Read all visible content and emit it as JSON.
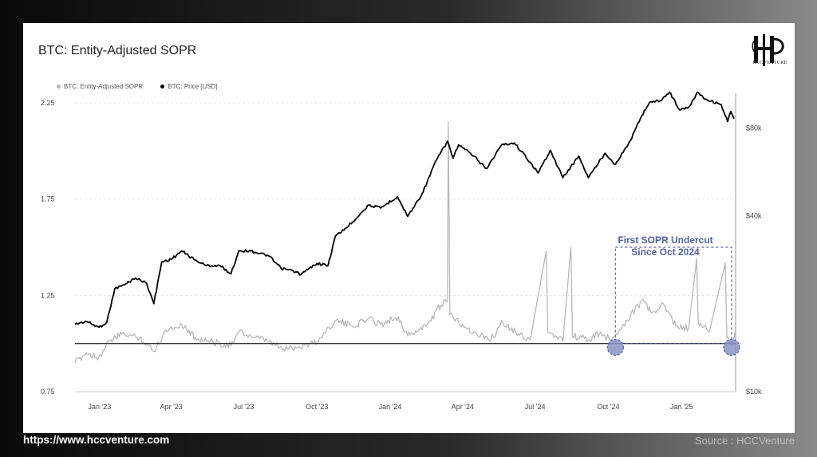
{
  "footer": {
    "url": "https://www.hccventure.com",
    "source": "Source : HCCVenture"
  },
  "logo": {
    "text": "HCCVENTURE"
  },
  "colors": {
    "sopr": "#b8b8b8",
    "price": "#000000",
    "annotation": "#5560a8",
    "marker_fill": "#8a94c6",
    "baseline": "#333333"
  },
  "chart_data": {
    "type": "line",
    "title": "BTC: Entity-Adjusted SOPR",
    "legend": [
      "BTC: Entity-Adjusted SOPR",
      "BTC: Price [USD]"
    ],
    "legend_placement": "top-left",
    "grid": "horizontal dashed",
    "x_tick_labels": [
      "Jan '23",
      "Apr '23",
      "Jul '23",
      "Oct '23",
      "Jan '24",
      "Apr '24",
      "Jul '24",
      "Oct '24",
      "Jan '25"
    ],
    "x_range": [
      "2022-12-01",
      "2025-03-10"
    ],
    "left_axis": {
      "ticks": [
        0.75,
        1.25,
        1.75,
        2.25
      ],
      "tick_labels": [
        "0.75",
        "1.25",
        "1.75",
        "2.25"
      ],
      "range": [
        0.75,
        2.3
      ]
    },
    "right_axis": {
      "scale": "log",
      "ticks": [
        10000,
        40000,
        80000
      ],
      "tick_labels": [
        "$10k",
        "$40k",
        "$80k"
      ],
      "range": [
        10000,
        105000
      ]
    },
    "baseline": 1.0,
    "series": [
      {
        "name": "BTC: Price [USD]",
        "axis": "right",
        "points": [
          [
            "2022-12-01",
            17000
          ],
          [
            "2022-12-15",
            17400
          ],
          [
            "2022-12-31",
            16600
          ],
          [
            "2023-01-10",
            17300
          ],
          [
            "2023-01-20",
            22500
          ],
          [
            "2023-02-01",
            23200
          ],
          [
            "2023-02-15",
            24500
          ],
          [
            "2023-03-01",
            23500
          ],
          [
            "2023-03-10",
            20000
          ],
          [
            "2023-03-20",
            27800
          ],
          [
            "2023-04-01",
            28400
          ],
          [
            "2023-04-14",
            30300
          ],
          [
            "2023-05-01",
            28200
          ],
          [
            "2023-05-15",
            27000
          ],
          [
            "2023-06-01",
            27000
          ],
          [
            "2023-06-15",
            25300
          ],
          [
            "2023-06-25",
            30400
          ],
          [
            "2023-07-10",
            30300
          ],
          [
            "2023-08-01",
            29200
          ],
          [
            "2023-08-17",
            26400
          ],
          [
            "2023-09-01",
            25900
          ],
          [
            "2023-09-11",
            25200
          ],
          [
            "2023-10-01",
            27500
          ],
          [
            "2023-10-15",
            27000
          ],
          [
            "2023-10-24",
            34000
          ],
          [
            "2023-11-10",
            37000
          ],
          [
            "2023-12-05",
            43500
          ],
          [
            "2023-12-20",
            42500
          ],
          [
            "2024-01-10",
            46500
          ],
          [
            "2024-01-23",
            39800
          ],
          [
            "2024-02-10",
            47500
          ],
          [
            "2024-02-28",
            62000
          ],
          [
            "2024-03-13",
            72000
          ],
          [
            "2024-03-20",
            63000
          ],
          [
            "2024-03-27",
            70000
          ],
          [
            "2024-04-15",
            64000
          ],
          [
            "2024-05-01",
            58000
          ],
          [
            "2024-05-20",
            70000
          ],
          [
            "2024-06-05",
            71000
          ],
          [
            "2024-06-25",
            61000
          ],
          [
            "2024-07-05",
            56000
          ],
          [
            "2024-07-20",
            67000
          ],
          [
            "2024-08-05",
            54000
          ],
          [
            "2024-08-25",
            64000
          ],
          [
            "2024-09-06",
            54000
          ],
          [
            "2024-09-27",
            65500
          ],
          [
            "2024-10-10",
            60000
          ],
          [
            "2024-10-29",
            72500
          ],
          [
            "2024-11-12",
            88000
          ],
          [
            "2024-11-22",
            98000
          ],
          [
            "2024-12-05",
            99000
          ],
          [
            "2024-12-17",
            106000
          ],
          [
            "2024-12-30",
            92000
          ],
          [
            "2025-01-10",
            94000
          ],
          [
            "2025-01-21",
            106000
          ],
          [
            "2025-02-01",
            100000
          ],
          [
            "2025-02-20",
            96000
          ],
          [
            "2025-02-28",
            84000
          ],
          [
            "2025-03-04",
            91000
          ],
          [
            "2025-03-08",
            86000
          ]
        ]
      },
      {
        "name": "BTC: Entity-Adjusted SOPR",
        "axis": "left",
        "points": [
          [
            "2022-12-01",
            0.9
          ],
          [
            "2022-12-15",
            0.95
          ],
          [
            "2022-12-31",
            0.93
          ],
          [
            "2023-01-15",
            1.02
          ],
          [
            "2023-02-01",
            1.05
          ],
          [
            "2023-02-20",
            1.03
          ],
          [
            "2023-03-10",
            0.96
          ],
          [
            "2023-03-25",
            1.07
          ],
          [
            "2023-04-14",
            1.1
          ],
          [
            "2023-05-01",
            1.03
          ],
          [
            "2023-05-20",
            1.01
          ],
          [
            "2023-06-15",
            0.99
          ],
          [
            "2023-06-25",
            1.06
          ],
          [
            "2023-07-15",
            1.03
          ],
          [
            "2023-08-01",
            1.01
          ],
          [
            "2023-08-20",
            0.97
          ],
          [
            "2023-09-15",
            0.99
          ],
          [
            "2023-10-01",
            1.01
          ],
          [
            "2023-10-24",
            1.12
          ],
          [
            "2023-11-15",
            1.09
          ],
          [
            "2023-12-05",
            1.13
          ],
          [
            "2023-12-20",
            1.1
          ],
          [
            "2024-01-11",
            1.14
          ],
          [
            "2024-01-23",
            1.04
          ],
          [
            "2024-02-15",
            1.09
          ],
          [
            "2024-03-05",
            1.2
          ],
          [
            "2024-03-13",
            1.22
          ],
          [
            "2024-03-14",
            2.15
          ],
          [
            "2024-03-16",
            1.15
          ],
          [
            "2024-04-01",
            1.1
          ],
          [
            "2024-04-20",
            1.04
          ],
          [
            "2024-05-10",
            1.03
          ],
          [
            "2024-05-20",
            1.12
          ],
          [
            "2024-06-10",
            1.05
          ],
          [
            "2024-06-25",
            1.02
          ],
          [
            "2024-07-15",
            1.48
          ],
          [
            "2024-07-17",
            1.06
          ],
          [
            "2024-08-05",
            1.01
          ],
          [
            "2024-08-15",
            1.5
          ],
          [
            "2024-08-17",
            1.04
          ],
          [
            "2024-09-06",
            1.02
          ],
          [
            "2024-09-20",
            1.05
          ],
          [
            "2024-10-05",
            1.02
          ],
          [
            "2024-10-20",
            1.1
          ],
          [
            "2024-11-12",
            1.22
          ],
          [
            "2024-11-25",
            1.16
          ],
          [
            "2024-12-10",
            1.2
          ],
          [
            "2024-12-25",
            1.09
          ],
          [
            "2025-01-10",
            1.08
          ],
          [
            "2025-01-20",
            1.44
          ],
          [
            "2025-01-22",
            1.11
          ],
          [
            "2025-02-05",
            1.06
          ],
          [
            "2025-02-25",
            1.42
          ],
          [
            "2025-02-27",
            1.03
          ],
          [
            "2025-03-05",
            0.99
          ],
          [
            "2025-03-10",
            1.07
          ]
        ]
      }
    ],
    "annotations": [
      {
        "type": "text",
        "lines": [
          "First SOPR Undercut",
          "Since Oct 2024"
        ]
      },
      {
        "type": "dashed-box",
        "x_range": [
          "2024-10-10",
          "2025-03-05"
        ],
        "y_range": [
          1.0,
          1.5
        ]
      },
      {
        "type": "circle-marker",
        "x": "2024-10-10",
        "y": 0.98
      },
      {
        "type": "circle-marker",
        "x": "2025-03-05",
        "y": 0.98
      }
    ]
  }
}
